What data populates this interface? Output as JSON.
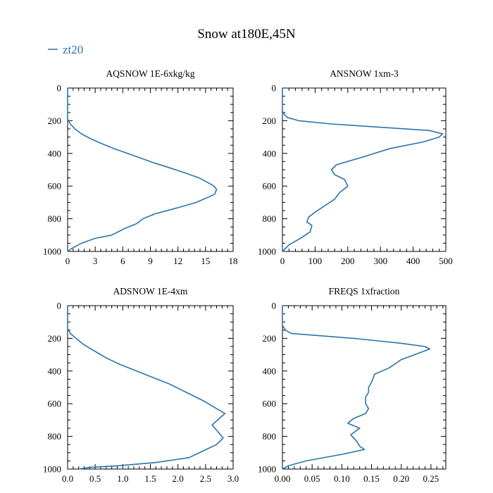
{
  "figure": {
    "title": "Snow at180E,45N",
    "legend": {
      "label": "zt20",
      "color": "#2a74ad"
    }
  },
  "chart_data": [
    {
      "type": "line",
      "title": "AQSNOW  1E-6xkg/kg",
      "xlim": [
        0,
        18
      ],
      "ylim": [
        1000,
        0
      ],
      "xticks": [
        0,
        3,
        6,
        9,
        12,
        15,
        18
      ],
      "xticklabels": [
        "0",
        "3",
        "6",
        "9",
        "12",
        "15",
        "18"
      ],
      "yticks": [
        0,
        200,
        400,
        600,
        800,
        1000
      ],
      "yticklabels": [
        "0",
        "200",
        "400",
        "600",
        "800",
        "1000"
      ],
      "series": [
        {
          "name": "zt20",
          "x": [
            0,
            0,
            0,
            0,
            0.3,
            0.8,
            1.5,
            2.5,
            3.7,
            5.0,
            6.5,
            8.0,
            9.5,
            11.2,
            12.8,
            14.3,
            15.3,
            15.9,
            16.2,
            16.0,
            14.0,
            11.5,
            9.5,
            8.2,
            7.5,
            6.2,
            4.8,
            3.0,
            1.5,
            0.5,
            0
          ],
          "y": [
            0,
            100,
            150,
            190,
            220,
            250,
            280,
            310,
            340,
            370,
            400,
            430,
            460,
            490,
            520,
            550,
            580,
            600,
            620,
            650,
            700,
            740,
            770,
            800,
            830,
            860,
            900,
            920,
            950,
            980,
            1000
          ]
        }
      ]
    },
    {
      "type": "line",
      "title": "ANSNOW  1xm-3",
      "xlim": [
        0,
        500
      ],
      "ylim": [
        1000,
        0
      ],
      "xticks": [
        0,
        100,
        200,
        300,
        400,
        500
      ],
      "xticklabels": [
        "0",
        "100",
        "200",
        "300",
        "400",
        "500"
      ],
      "yticks": [
        0,
        200,
        400,
        600,
        800,
        1000
      ],
      "yticklabels": [
        "0",
        "200",
        "400",
        "600",
        "800",
        "1000"
      ],
      "series": [
        {
          "name": "zt20",
          "x": [
            0,
            0,
            0,
            5,
            15,
            50,
            150,
            300,
            450,
            490,
            480,
            430,
            330,
            250,
            165,
            150,
            160,
            190,
            200,
            175,
            160,
            130,
            100,
            80,
            75,
            90,
            85,
            55,
            20,
            0
          ],
          "y": [
            0,
            100,
            140,
            160,
            180,
            200,
            220,
            240,
            260,
            280,
            300,
            330,
            370,
            420,
            470,
            500,
            530,
            560,
            600,
            640,
            680,
            720,
            760,
            790,
            820,
            840,
            880,
            920,
            960,
            1000
          ]
        }
      ]
    },
    {
      "type": "line",
      "title": "ADSNOW  1E-4xm",
      "xlim": [
        0,
        3.0
      ],
      "ylim": [
        1000,
        0
      ],
      "xticks": [
        0.0,
        0.5,
        1.0,
        1.5,
        2.0,
        2.5,
        3.0
      ],
      "xticklabels": [
        "0.0",
        "0.5",
        "1.0",
        "1.5",
        "2.0",
        "2.5",
        "3.0"
      ],
      "yticks": [
        0,
        200,
        400,
        600,
        800,
        1000
      ],
      "yticklabels": [
        "0",
        "200",
        "400",
        "600",
        "800",
        "1000"
      ],
      "series": [
        {
          "name": "zt20",
          "x": [
            0,
            0,
            0,
            0.05,
            0.15,
            0.3,
            0.5,
            0.7,
            0.95,
            1.25,
            1.55,
            1.85,
            2.15,
            2.45,
            2.7,
            2.85,
            2.75,
            2.62,
            2.72,
            2.82,
            2.7,
            2.45,
            2.2,
            1.6,
            0.9,
            0.4,
            0.2
          ],
          "y": [
            0,
            100,
            140,
            170,
            200,
            240,
            280,
            320,
            360,
            400,
            440,
            480,
            530,
            580,
            630,
            660,
            690,
            730,
            770,
            810,
            850,
            890,
            930,
            960,
            980,
            990,
            1000
          ]
        }
      ]
    },
    {
      "type": "line",
      "title": "FREQS  1xfraction",
      "xlim": [
        0,
        0.275
      ],
      "ylim": [
        1000,
        0
      ],
      "xticks": [
        0,
        0.05,
        0.1,
        0.15,
        0.2,
        0.25
      ],
      "xticklabels": [
        "0.00",
        "0.05",
        "0.10",
        "0.15",
        "0.20",
        "0.25"
      ],
      "yticks": [
        0,
        200,
        400,
        600,
        800,
        1000
      ],
      "yticklabels": [
        "0",
        "200",
        "400",
        "600",
        "800",
        "1000"
      ],
      "series": [
        {
          "name": "zt20",
          "x": [
            0,
            0,
            0,
            0.005,
            0.015,
            0.05,
            0.12,
            0.2,
            0.24,
            0.248,
            0.23,
            0.2,
            0.18,
            0.155,
            0.15,
            0.145,
            0.145,
            0.14,
            0.14,
            0.145,
            0.14,
            0.12,
            0.11,
            0.13,
            0.115,
            0.125,
            0.13,
            0.138,
            0.1,
            0.04,
            0.01,
            0
          ],
          "y": [
            0,
            80,
            120,
            150,
            170,
            180,
            200,
            230,
            250,
            265,
            290,
            330,
            380,
            420,
            470,
            500,
            530,
            560,
            600,
            630,
            660,
            690,
            720,
            750,
            790,
            830,
            860,
            880,
            910,
            950,
            980,
            1000
          ]
        }
      ]
    }
  ]
}
